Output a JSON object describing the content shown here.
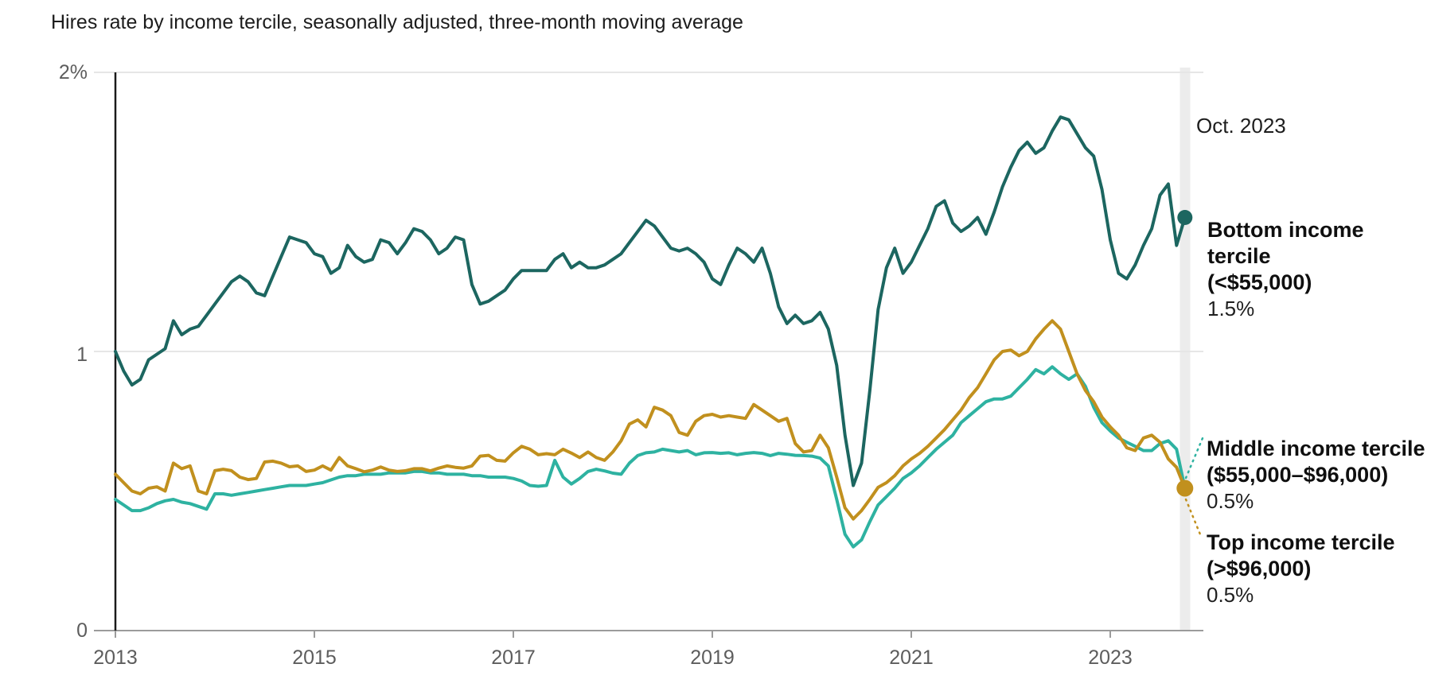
{
  "title": "Hires rate by income tercile, seasonally adjusted, three-month moving average",
  "annotations": {
    "date_label": "Oct. 2023",
    "series": [
      {
        "id": "bottom",
        "line1": "Bottom income tercile",
        "line2": "(<$55,000)",
        "value": "1.5%"
      },
      {
        "id": "middle",
        "line1": "Middle income tercile",
        "line2": "($55,000–$96,000)",
        "value": "0.5%"
      },
      {
        "id": "top",
        "line1": "Top income tercile",
        "line2": "(>$96,000)",
        "value": "0.5%"
      }
    ]
  },
  "axes": {
    "y_ticks": [
      "2%",
      "1",
      "0"
    ],
    "x_ticks": [
      "2013",
      "2015",
      "2017",
      "2019",
      "2021",
      "2023"
    ]
  },
  "chart_data": {
    "type": "line",
    "title": "Hires rate by income tercile, seasonally adjusted, three-month moving average",
    "x_start": "2013-01",
    "x_end": "2023-10",
    "frequency": "monthly",
    "ylim": [
      0,
      2
    ],
    "y_unit": "percent",
    "grid": "horizontal",
    "highlight_x": "2023-10",
    "highlight_band_color": "#ececec",
    "series": [
      {
        "id": "middle",
        "name": "Middle income tercile ($55,000–$96,000)",
        "color": "#2eb2a1",
        "end_value": 0.5,
        "values": [
          0.47,
          0.45,
          0.43,
          0.43,
          0.44,
          0.455,
          0.465,
          0.47,
          0.46,
          0.455,
          0.445,
          0.435,
          0.49,
          0.49,
          0.485,
          0.49,
          0.495,
          0.5,
          0.505,
          0.51,
          0.515,
          0.52,
          0.52,
          0.52,
          0.525,
          0.53,
          0.54,
          0.55,
          0.555,
          0.555,
          0.56,
          0.56,
          0.56,
          0.565,
          0.565,
          0.565,
          0.57,
          0.57,
          0.565,
          0.565,
          0.56,
          0.56,
          0.56,
          0.555,
          0.555,
          0.55,
          0.55,
          0.55,
          0.545,
          0.536,
          0.52,
          0.517,
          0.52,
          0.61,
          0.55,
          0.525,
          0.545,
          0.57,
          0.578,
          0.572,
          0.564,
          0.56,
          0.6,
          0.627,
          0.637,
          0.64,
          0.65,
          0.645,
          0.64,
          0.645,
          0.63,
          0.637,
          0.638,
          0.635,
          0.637,
          0.63,
          0.635,
          0.638,
          0.635,
          0.627,
          0.635,
          0.632,
          0.628,
          0.627,
          0.625,
          0.618,
          0.59,
          0.47,
          0.345,
          0.3,
          0.325,
          0.39,
          0.45,
          0.48,
          0.51,
          0.545,
          0.565,
          0.59,
          0.62,
          0.65,
          0.675,
          0.7,
          0.745,
          0.77,
          0.795,
          0.82,
          0.83,
          0.83,
          0.84,
          0.87,
          0.9,
          0.935,
          0.92,
          0.945,
          0.92,
          0.9,
          0.92,
          0.875,
          0.8,
          0.745,
          0.715,
          0.69,
          0.675,
          0.66,
          0.645,
          0.645,
          0.67,
          0.68,
          0.65,
          0.51
        ]
      },
      {
        "id": "bottom",
        "name": "Bottom income tercile (<$55,000)",
        "color": "#1c6660",
        "end_value": 1.5,
        "values": [
          1.0,
          0.93,
          0.88,
          0.9,
          0.97,
          0.99,
          1.01,
          1.11,
          1.06,
          1.08,
          1.09,
          1.13,
          1.17,
          1.21,
          1.25,
          1.27,
          1.25,
          1.21,
          1.2,
          1.27,
          1.34,
          1.41,
          1.4,
          1.39,
          1.35,
          1.34,
          1.28,
          1.3,
          1.38,
          1.34,
          1.32,
          1.33,
          1.4,
          1.39,
          1.35,
          1.39,
          1.44,
          1.43,
          1.4,
          1.35,
          1.37,
          1.41,
          1.4,
          1.24,
          1.17,
          1.18,
          1.2,
          1.22,
          1.26,
          1.29,
          1.29,
          1.29,
          1.29,
          1.33,
          1.35,
          1.3,
          1.32,
          1.3,
          1.3,
          1.31,
          1.33,
          1.35,
          1.39,
          1.43,
          1.47,
          1.45,
          1.41,
          1.37,
          1.36,
          1.37,
          1.35,
          1.32,
          1.26,
          1.24,
          1.31,
          1.37,
          1.35,
          1.32,
          1.37,
          1.28,
          1.16,
          1.1,
          1.13,
          1.1,
          1.11,
          1.14,
          1.08,
          0.95,
          0.7,
          0.52,
          0.6,
          0.86,
          1.15,
          1.3,
          1.37,
          1.28,
          1.32,
          1.38,
          1.44,
          1.52,
          1.54,
          1.46,
          1.43,
          1.45,
          1.48,
          1.42,
          1.5,
          1.59,
          1.66,
          1.72,
          1.75,
          1.71,
          1.73,
          1.79,
          1.84,
          1.83,
          1.78,
          1.73,
          1.7,
          1.58,
          1.4,
          1.28,
          1.26,
          1.31,
          1.38,
          1.44,
          1.56,
          1.6,
          1.38,
          1.48
        ]
      },
      {
        "id": "top",
        "name": "Top income tercile (>$96,000)",
        "color": "#c1901e",
        "end_value": 0.5,
        "values": [
          0.56,
          0.53,
          0.5,
          0.49,
          0.51,
          0.515,
          0.5,
          0.6,
          0.58,
          0.59,
          0.5,
          0.49,
          0.573,
          0.578,
          0.573,
          0.55,
          0.541,
          0.545,
          0.604,
          0.607,
          0.6,
          0.587,
          0.59,
          0.57,
          0.575,
          0.59,
          0.575,
          0.62,
          0.59,
          0.58,
          0.569,
          0.575,
          0.586,
          0.575,
          0.57,
          0.573,
          0.58,
          0.58,
          0.572,
          0.582,
          0.59,
          0.585,
          0.582,
          0.59,
          0.625,
          0.628,
          0.61,
          0.607,
          0.637,
          0.66,
          0.65,
          0.63,
          0.634,
          0.63,
          0.65,
          0.636,
          0.62,
          0.64,
          0.62,
          0.61,
          0.64,
          0.68,
          0.74,
          0.755,
          0.73,
          0.8,
          0.79,
          0.77,
          0.71,
          0.7,
          0.75,
          0.77,
          0.775,
          0.765,
          0.77,
          0.765,
          0.76,
          0.81,
          0.79,
          0.77,
          0.75,
          0.76,
          0.67,
          0.64,
          0.645,
          0.7,
          0.655,
          0.55,
          0.44,
          0.4,
          0.43,
          0.47,
          0.513,
          0.53,
          0.555,
          0.59,
          0.615,
          0.635,
          0.66,
          0.69,
          0.72,
          0.755,
          0.79,
          0.835,
          0.87,
          0.92,
          0.97,
          1.0,
          1.005,
          0.985,
          1.0,
          1.045,
          1.08,
          1.11,
          1.08,
          1.0,
          0.92,
          0.86,
          0.82,
          0.765,
          0.73,
          0.7,
          0.655,
          0.645,
          0.69,
          0.7,
          0.675,
          0.615,
          0.585,
          0.51
        ]
      }
    ]
  }
}
